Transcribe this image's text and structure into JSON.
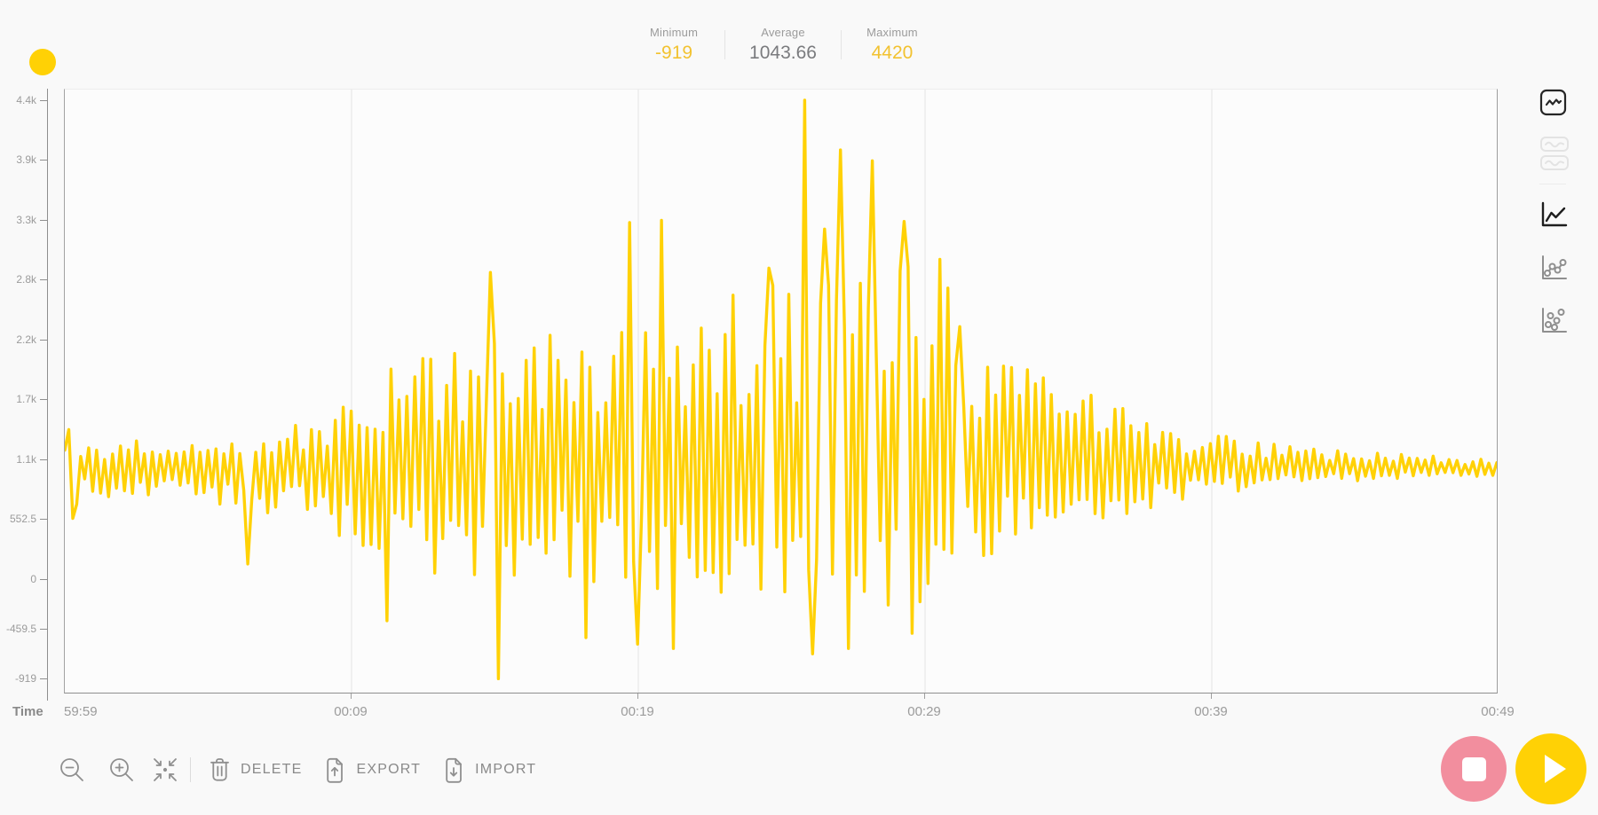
{
  "window": {
    "background": "#f9f9f9"
  },
  "status_dot": {
    "color": "#ffd105"
  },
  "header_stats": {
    "items": [
      {
        "label": "Minimum",
        "value": "-919",
        "value_color": "#f2c230"
      },
      {
        "label": "Average",
        "value": "1043.66",
        "value_color": "#7a7b7e"
      },
      {
        "label": "Maximum",
        "value": "4420",
        "value_color": "#f2c230"
      }
    ]
  },
  "chart_data": {
    "type": "line",
    "kind": "waveform-recording",
    "series_color": "#ffd105",
    "grid_color": "#ececec",
    "xlabel": "Time",
    "x_ticks": [
      "59:59",
      "00:09",
      "00:19",
      "00:29",
      "00:39",
      "00:49"
    ],
    "x_tick_interval_seconds": 10,
    "y_ticks": [
      {
        "label": "4.4k",
        "value": 4420
      },
      {
        "label": "3.9k",
        "value": 3867.5
      },
      {
        "label": "3.3k",
        "value": 3315
      },
      {
        "label": "2.8k",
        "value": 2762.5
      },
      {
        "label": "2.2k",
        "value": 2210
      },
      {
        "label": "1.7k",
        "value": 1657.5
      },
      {
        "label": "1.1k",
        "value": 1105
      },
      {
        "label": "552.5",
        "value": 552.5
      },
      {
        "label": "0",
        "value": 0
      },
      {
        "label": "-459.5",
        "value": -459.5
      },
      {
        "label": "-919",
        "value": -919
      }
    ],
    "stats": {
      "minimum": -919,
      "average": 1043.66,
      "maximum": 4420
    },
    "baseline": 1020,
    "envelope": [
      {
        "t": 0.0,
        "up": 330,
        "dn": 420
      },
      {
        "t": 0.015,
        "up": 240,
        "dn": 280
      },
      {
        "t": 0.06,
        "up": 260,
        "dn": 260
      },
      {
        "t": 0.1,
        "up": 300,
        "dn": 330
      },
      {
        "t": 0.125,
        "up": 330,
        "dn": 520
      },
      {
        "t": 0.15,
        "up": 420,
        "dn": 420
      },
      {
        "t": 0.185,
        "up": 600,
        "dn": 600
      },
      {
        "t": 0.22,
        "up": 900,
        "dn": 800
      },
      {
        "t": 0.25,
        "up": 1050,
        "dn": 950
      },
      {
        "t": 0.285,
        "up": 1250,
        "dn": 1100
      },
      {
        "t": 0.31,
        "up": 1350,
        "dn": 1250
      },
      {
        "t": 0.35,
        "up": 1300,
        "dn": 1000
      },
      {
        "t": 0.395,
        "up": 1700,
        "dn": 1300
      },
      {
        "t": 0.43,
        "up": 1500,
        "dn": 1350
      },
      {
        "t": 0.465,
        "up": 1550,
        "dn": 1200
      },
      {
        "t": 0.5,
        "up": 1800,
        "dn": 1300
      },
      {
        "t": 0.53,
        "up": 2000,
        "dn": 1500
      },
      {
        "t": 0.56,
        "up": 2000,
        "dn": 1450
      },
      {
        "t": 0.59,
        "up": 1900,
        "dn": 1300
      },
      {
        "t": 0.62,
        "up": 1700,
        "dn": 1100
      },
      {
        "t": 0.65,
        "up": 1300,
        "dn": 850
      },
      {
        "t": 0.68,
        "up": 1000,
        "dn": 650
      },
      {
        "t": 0.72,
        "up": 700,
        "dn": 480
      },
      {
        "t": 0.76,
        "up": 480,
        "dn": 360
      },
      {
        "t": 0.8,
        "up": 330,
        "dn": 260
      },
      {
        "t": 0.85,
        "up": 230,
        "dn": 180
      },
      {
        "t": 0.9,
        "up": 160,
        "dn": 120
      },
      {
        "t": 0.95,
        "up": 120,
        "dn": 90
      },
      {
        "t": 1.0,
        "up": 90,
        "dn": 70
      }
    ],
    "spikes": [
      {
        "t": 0.004,
        "v": 1380
      },
      {
        "t": 0.006,
        "v": 560
      },
      {
        "t": 0.128,
        "v": 140
      },
      {
        "t": 0.226,
        "v": -385
      },
      {
        "t": 0.298,
        "v": 2830
      },
      {
        "t": 0.303,
        "v": -919
      },
      {
        "t": 0.34,
        "v": 2250
      },
      {
        "t": 0.365,
        "v": -540
      },
      {
        "t": 0.395,
        "v": 3290
      },
      {
        "t": 0.4,
        "v": -600
      },
      {
        "t": 0.418,
        "v": 3310
      },
      {
        "t": 0.424,
        "v": -640
      },
      {
        "t": 0.468,
        "v": 2620
      },
      {
        "t": 0.493,
        "v": 2870
      },
      {
        "t": 0.517,
        "v": 4420
      },
      {
        "t": 0.523,
        "v": -690
      },
      {
        "t": 0.53,
        "v": 3230
      },
      {
        "t": 0.542,
        "v": 3960
      },
      {
        "t": 0.548,
        "v": -640
      },
      {
        "t": 0.565,
        "v": 3860
      },
      {
        "t": 0.586,
        "v": 3300
      },
      {
        "t": 0.592,
        "v": -500
      },
      {
        "t": 0.61,
        "v": 2950
      },
      {
        "t": 0.624,
        "v": 2330
      }
    ]
  },
  "view_switcher": {
    "items": [
      {
        "icon": "waveform-single-view-icon",
        "active": true,
        "disabled": false
      },
      {
        "icon": "waveform-split-view-icon",
        "active": false,
        "disabled": true
      }
    ]
  },
  "chart_type_switcher": {
    "items": [
      {
        "icon": "line-chart-icon",
        "active": true
      },
      {
        "icon": "line-points-chart-icon",
        "active": false
      },
      {
        "icon": "scatter-chart-icon",
        "active": false
      }
    ]
  },
  "toolbar": {
    "delete_label": "DELETE",
    "export_label": "EXPORT",
    "import_label": "IMPORT"
  },
  "transport": {
    "stop_color": "#f28e9e",
    "play_color": "#ffd105"
  }
}
